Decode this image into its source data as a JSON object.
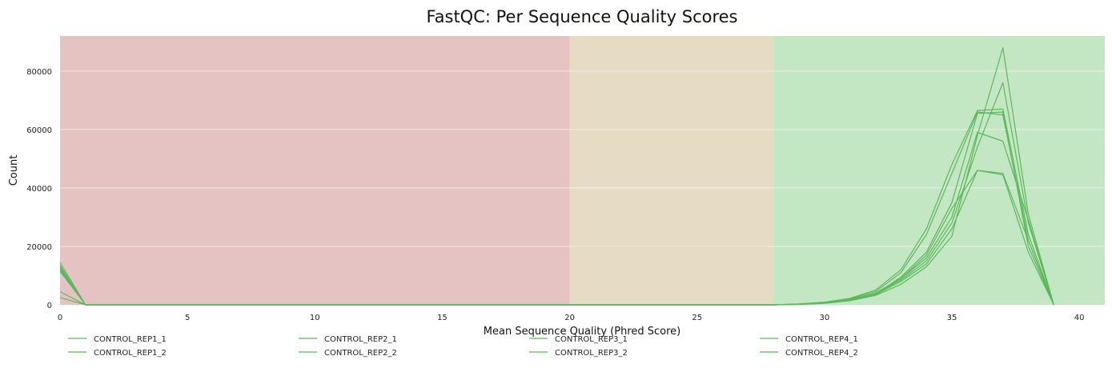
{
  "chart_data": {
    "type": "line",
    "title": "FastQC: Per Sequence Quality Scores",
    "xlabel": "Mean Sequence Quality (Phred Score)",
    "ylabel": "Count",
    "xlim": [
      0,
      41
    ],
    "ylim": [
      0,
      92000
    ],
    "xticks": [
      0,
      5,
      10,
      15,
      20,
      25,
      30,
      35,
      40
    ],
    "yticks": [
      0,
      20000,
      40000,
      60000,
      80000
    ],
    "grid": "horizontal",
    "legend_position": "bottom",
    "line_color": "#5cb85c",
    "bands": [
      {
        "from": 0,
        "to": 20,
        "color": "#e6c3c3"
      },
      {
        "from": 20,
        "to": 28,
        "color": "#e6dcc3"
      },
      {
        "from": 28,
        "to": 41,
        "color": "#c3e6c3"
      }
    ],
    "series": [
      {
        "name": "CONTROL_REP1_1",
        "points": [
          [
            0,
            14500
          ],
          [
            1,
            0
          ],
          [
            28,
            0
          ],
          [
            29,
            200
          ],
          [
            30,
            700
          ],
          [
            31,
            1800
          ],
          [
            32,
            4000
          ],
          [
            33,
            9000
          ],
          [
            34,
            16000
          ],
          [
            35,
            30000
          ],
          [
            36,
            59000
          ],
          [
            37,
            56000
          ],
          [
            38,
            29000
          ],
          [
            39,
            0
          ]
        ]
      },
      {
        "name": "CONTROL_REP1_2",
        "points": [
          [
            0,
            12000
          ],
          [
            1,
            0
          ],
          [
            28,
            0
          ],
          [
            29,
            150
          ],
          [
            30,
            600
          ],
          [
            31,
            1600
          ],
          [
            32,
            3500
          ],
          [
            33,
            8000
          ],
          [
            34,
            14000
          ],
          [
            35,
            26000
          ],
          [
            36,
            46000
          ],
          [
            37,
            44500
          ],
          [
            38,
            18000
          ],
          [
            39,
            0
          ]
        ]
      },
      {
        "name": "CONTROL_REP2_1",
        "points": [
          [
            0,
            4500
          ],
          [
            1,
            0
          ],
          [
            28,
            0
          ],
          [
            29,
            300
          ],
          [
            30,
            900
          ],
          [
            31,
            2200
          ],
          [
            32,
            5000
          ],
          [
            33,
            12000
          ],
          [
            34,
            26000
          ],
          [
            35,
            48000
          ],
          [
            36,
            66500
          ],
          [
            37,
            67000
          ],
          [
            38,
            24000
          ],
          [
            39,
            0
          ]
        ]
      },
      {
        "name": "CONTROL_REP2_2",
        "points": [
          [
            0,
            2500
          ],
          [
            1,
            0
          ],
          [
            28,
            0
          ],
          [
            29,
            250
          ],
          [
            30,
            800
          ],
          [
            31,
            2000
          ],
          [
            32,
            4500
          ],
          [
            33,
            11000
          ],
          [
            34,
            24000
          ],
          [
            35,
            45000
          ],
          [
            36,
            66000
          ],
          [
            37,
            65000
          ],
          [
            38,
            22000
          ],
          [
            39,
            0
          ]
        ]
      },
      {
        "name": "CONTROL_REP3_1",
        "points": [
          [
            0,
            13000
          ],
          [
            1,
            0
          ],
          [
            28,
            0
          ],
          [
            29,
            150
          ],
          [
            30,
            500
          ],
          [
            31,
            1400
          ],
          [
            32,
            3200
          ],
          [
            33,
            7000
          ],
          [
            34,
            13000
          ],
          [
            35,
            23500
          ],
          [
            36,
            58000
          ],
          [
            37,
            88000
          ],
          [
            38,
            31000
          ],
          [
            39,
            0
          ]
        ]
      },
      {
        "name": "CONTROL_REP3_2",
        "points": [
          [
            0,
            12500
          ],
          [
            1,
            0
          ],
          [
            28,
            0
          ],
          [
            29,
            200
          ],
          [
            30,
            650
          ],
          [
            31,
            1700
          ],
          [
            32,
            3800
          ],
          [
            33,
            8500
          ],
          [
            34,
            15000
          ],
          [
            35,
            28000
          ],
          [
            36,
            54000
          ],
          [
            37,
            76000
          ],
          [
            38,
            28000
          ],
          [
            39,
            0
          ]
        ]
      },
      {
        "name": "CONTROL_REP4_1",
        "points": [
          [
            0,
            13500
          ],
          [
            1,
            0
          ],
          [
            28,
            0
          ],
          [
            29,
            200
          ],
          [
            30,
            700
          ],
          [
            31,
            1700
          ],
          [
            32,
            3700
          ],
          [
            33,
            9000
          ],
          [
            34,
            17000
          ],
          [
            35,
            33000
          ],
          [
            36,
            46000
          ],
          [
            37,
            45000
          ],
          [
            38,
            22000
          ],
          [
            39,
            0
          ]
        ]
      },
      {
        "name": "CONTROL_REP4_2",
        "points": [
          [
            0,
            11500
          ],
          [
            1,
            0
          ],
          [
            28,
            0
          ],
          [
            29,
            180
          ],
          [
            30,
            650
          ],
          [
            31,
            1650
          ],
          [
            32,
            3600
          ],
          [
            33,
            9500
          ],
          [
            34,
            18000
          ],
          [
            35,
            35000
          ],
          [
            36,
            65500
          ],
          [
            37,
            66000
          ],
          [
            38,
            20000
          ],
          [
            39,
            0
          ]
        ]
      }
    ]
  }
}
